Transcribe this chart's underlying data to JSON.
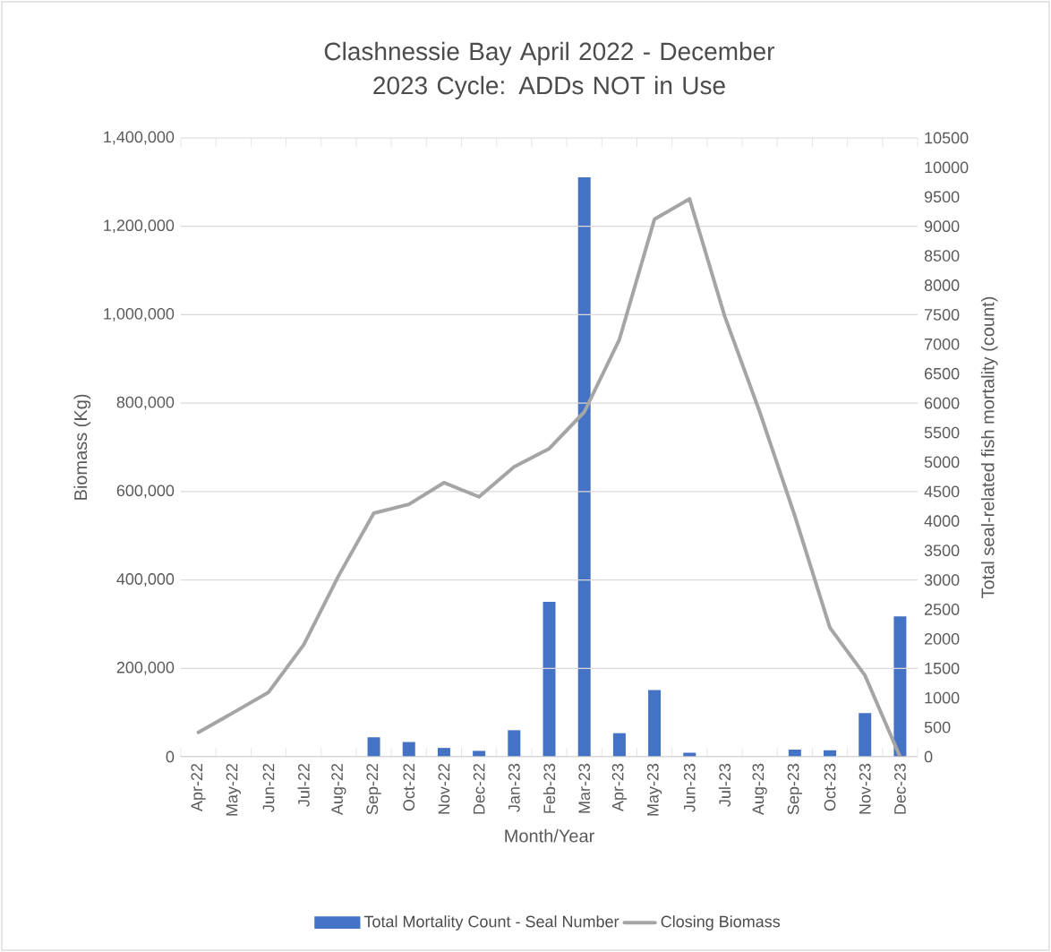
{
  "chart_data": {
    "type": "bar",
    "title": "Clashnessie Bay April 2022 - December 2023 Cycle: ADDs NOT in Use",
    "xlabel": "Month/Year",
    "ylabel": "Biomass (Kg)",
    "y2label": "Total seal-related fish mortality (count)",
    "categories": [
      "Apr-22",
      "May-22",
      "Jun-22",
      "Jul-22",
      "Aug-22",
      "Sep-22",
      "Oct-22",
      "Nov-22",
      "Dec-22",
      "Jan-23",
      "Feb-23",
      "Mar-23",
      "Apr-23",
      "May-23",
      "Jun-23",
      "Jul-23",
      "Aug-23",
      "Sep-23",
      "Oct-23",
      "Nov-23",
      "Dec-23"
    ],
    "series": [
      {
        "name": "Total Mortality Count - Seal Number",
        "axis": "y2",
        "color": "#4472c4",
        "values": [
          0,
          0,
          0,
          0,
          0,
          330,
          250,
          150,
          100,
          450,
          2630,
          9830,
          400,
          1130,
          70,
          0,
          0,
          120,
          110,
          740,
          2380
        ]
      },
      {
        "name": "Closing Biomass",
        "type": "line",
        "color": "#a5a5a5",
        "values": [
          55000,
          100000,
          146000,
          253000,
          410000,
          551000,
          571000,
          620000,
          588000,
          656000,
          697000,
          780000,
          944000,
          1216000,
          1262000,
          997000,
          780000,
          545000,
          292000,
          184000,
          0
        ]
      }
    ],
    "ylim": [
      0,
      1400000
    ],
    "yticks": [
      0,
      {
        "value": 200000,
        "label": "200,000"
      },
      {
        "value": 400000,
        "label": "400,000"
      },
      {
        "value": 600000,
        "label": "600,000"
      },
      {
        "value": 800000,
        "label": "800,000"
      },
      {
        "value": 1000000,
        "label": "1,000,000"
      },
      {
        "value": 1200000,
        "label": "1,200,000"
      },
      {
        "value": 1400000,
        "label": "1,400,000"
      }
    ],
    "y2lim": [
      0,
      10500
    ],
    "y2ticks": [
      0,
      500,
      1000,
      1500,
      2000,
      2500,
      3000,
      3500,
      4000,
      4500,
      5000,
      5500,
      6000,
      6500,
      7000,
      7500,
      8000,
      8500,
      9000,
      9500,
      10000,
      10500
    ],
    "grid": "y",
    "legend": "bottom"
  }
}
